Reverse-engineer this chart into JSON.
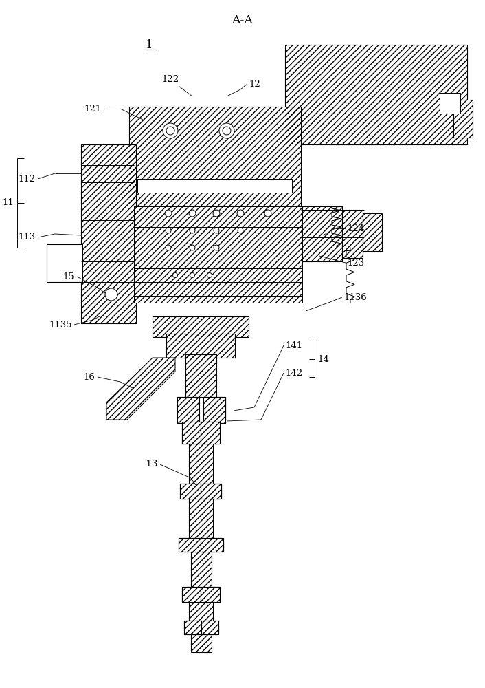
{
  "title": "A-A",
  "label_1": "1",
  "label_11": "11",
  "label_12": "12",
  "label_13": "-13",
  "label_14": "14",
  "label_15": "15",
  "label_16": "16",
  "label_112": "112",
  "label_113": "113",
  "label_121": "121",
  "label_122": "122",
  "label_123": "123",
  "label_124": "124",
  "label_141": "141",
  "label_142": "142",
  "label_1135": "1135",
  "label_1136": "1136",
  "bg_color": "#ffffff",
  "line_color": "#000000",
  "line_width": 0.8,
  "font_size": 9.5
}
